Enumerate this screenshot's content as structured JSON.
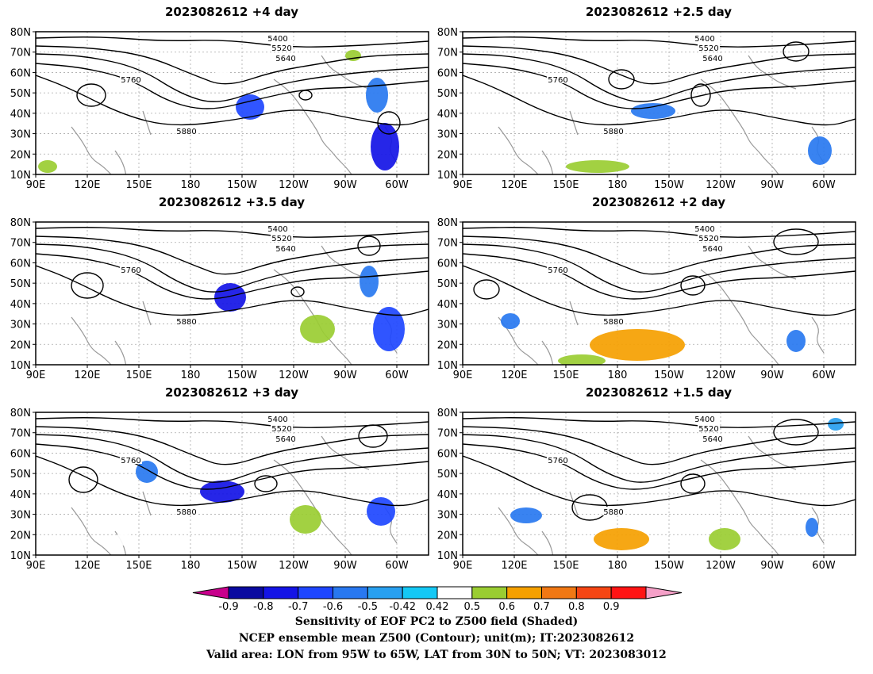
{
  "panels": [
    {
      "title": "2023082612 +4 day"
    },
    {
      "title": "2023082612 +2.5 day"
    },
    {
      "title": "2023082612 +3.5 day"
    },
    {
      "title": "2023082612 +2 day"
    },
    {
      "title": "2023082612 +3 day"
    },
    {
      "title": "2023082612 +1.5 day"
    }
  ],
  "axes": {
    "lat_labels": [
      "10N",
      "20N",
      "30N",
      "40N",
      "50N",
      "60N",
      "70N",
      "80N"
    ],
    "lon_labels": [
      "90E",
      "120E",
      "150E",
      "180",
      "150W",
      "120W",
      "90W",
      "60W"
    ]
  },
  "contour_levels": [
    "5400",
    "5520",
    "5640",
    "5760",
    "5880"
  ],
  "colorbar": {
    "tick_labels": [
      "-0.9",
      "-0.8",
      "-0.7",
      "-0.6",
      "-0.5",
      "-0.42",
      "0.42",
      "0.5",
      "0.6",
      "0.7",
      "0.8",
      "0.9"
    ],
    "colors": [
      "#c8008c",
      "#0a0aa0",
      "#1414e6",
      "#1e46ff",
      "#2878f0",
      "#28a0f0",
      "#14c8f5",
      "#ffffff",
      "#9acd32",
      "#f5a000",
      "#f07814",
      "#f54614",
      "#ff1414",
      "#f5a0c8"
    ]
  },
  "footer": {
    "line1": "Sensitivity of EOF PC2 to Z500 field (Shaded)",
    "line2": "NCEP ensemble mean Z500 (Contour); unit(m); IT:2023082612",
    "line3": "Valid area: LON from 95W to 65W, LAT from 30N to 50N; VT: 2023083012"
  }
}
